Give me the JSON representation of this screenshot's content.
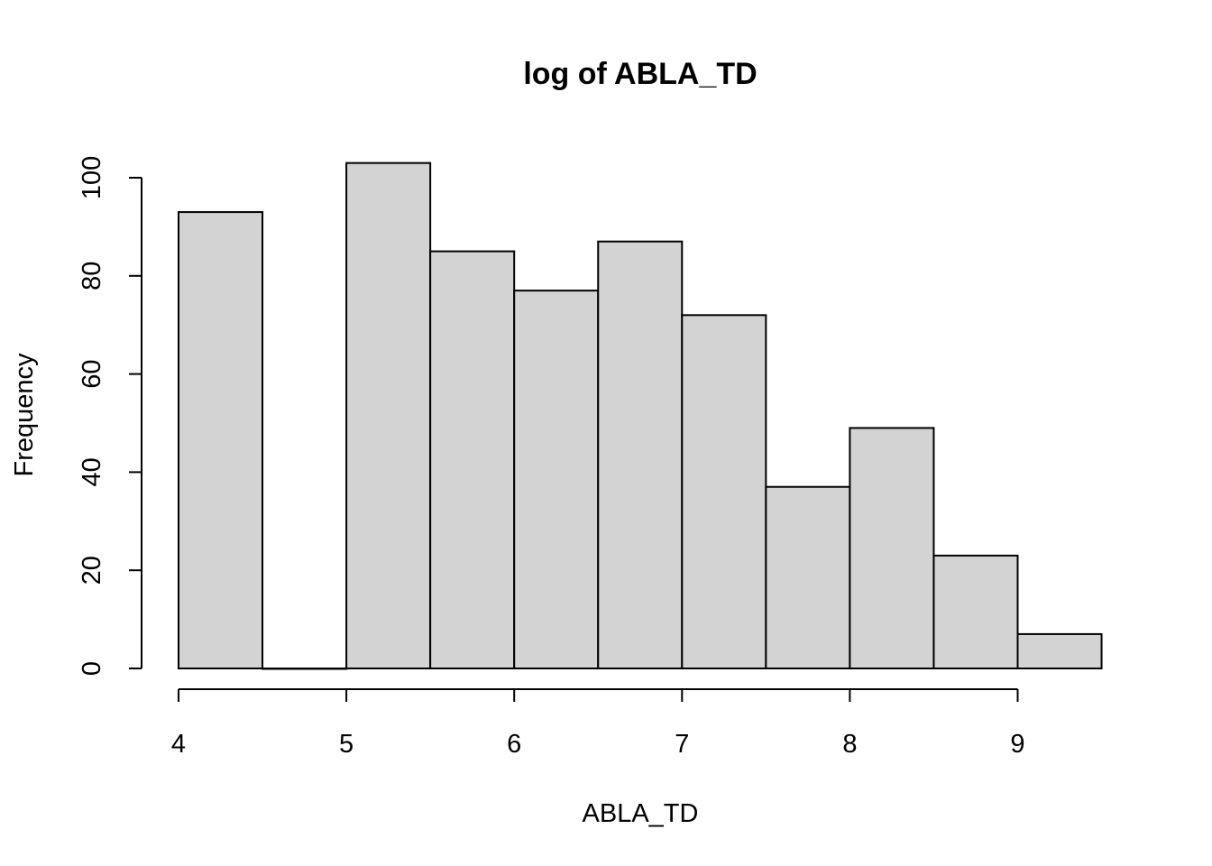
{
  "chart_data": {
    "type": "bar",
    "title": "log of ABLA_TD",
    "xlabel": "ABLA_TD",
    "ylabel": "Frequency",
    "bin_edges": [
      4,
      4.5,
      5,
      5.5,
      6,
      6.5,
      7,
      7.5,
      8,
      8.5,
      9,
      9.5
    ],
    "values": [
      93,
      0,
      103,
      85,
      77,
      87,
      72,
      37,
      49,
      23,
      7
    ],
    "xlim": [
      4,
      9.5
    ],
    "ylim": [
      0,
      100
    ],
    "xticks": [
      4,
      5,
      6,
      7,
      8,
      9
    ],
    "yticks": [
      0,
      20,
      40,
      60,
      80,
      100
    ],
    "grid": false,
    "bar_color": "#d3d3d3",
    "edge_color": "#000000"
  }
}
